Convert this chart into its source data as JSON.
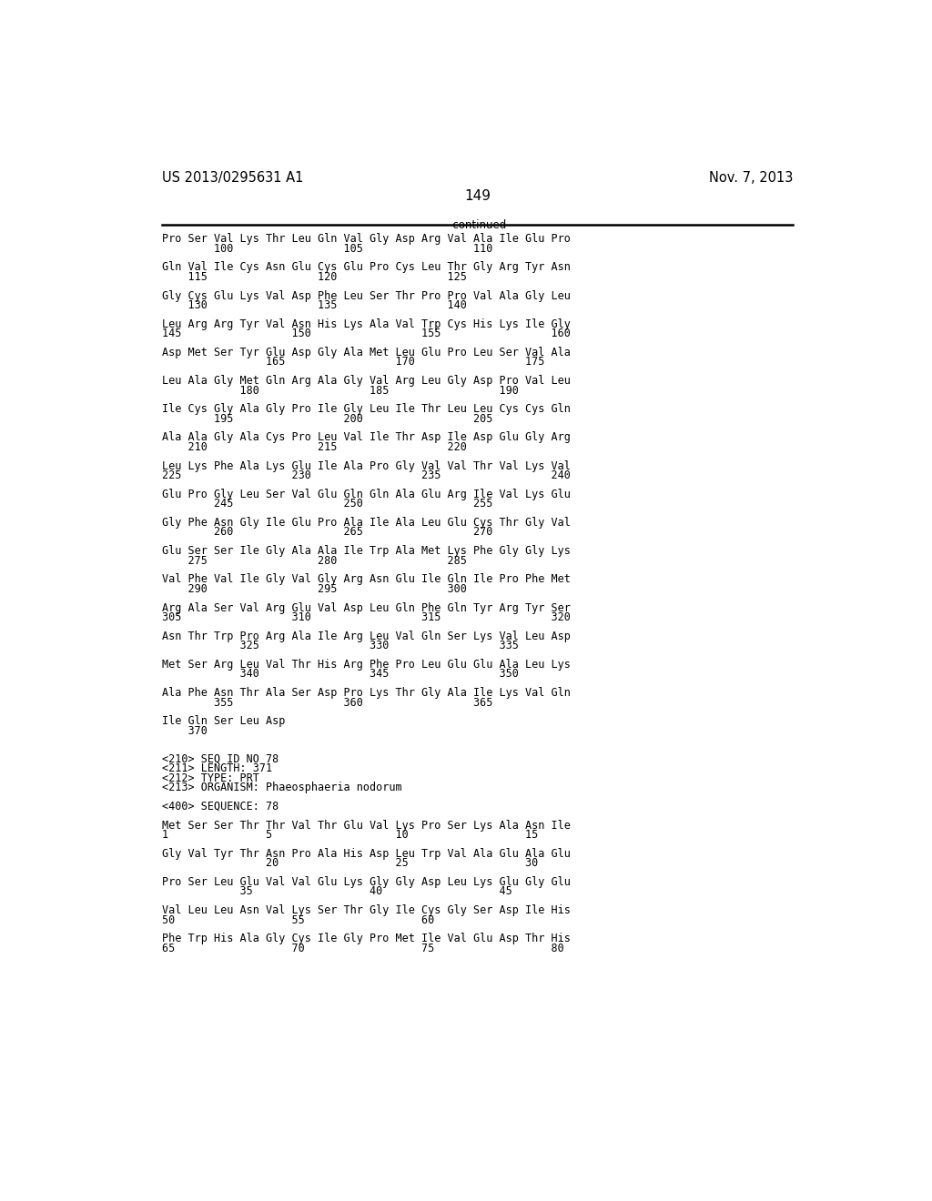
{
  "header_left": "US 2013/0295631 A1",
  "header_right": "Nov. 7, 2013",
  "page_number": "149",
  "continued_label": "-continued",
  "background_color": "#ffffff",
  "text_color": "#000000",
  "font_size": 8.5,
  "header_font_size": 10.5,
  "page_num_font_size": 11,
  "lines": [
    "Pro Ser Val Lys Thr Leu Gln Val Gly Asp Arg Val Ala Ile Glu Pro",
    "        100                 105                 110",
    "",
    "Gln Val Ile Cys Asn Glu Cys Glu Pro Cys Leu Thr Gly Arg Tyr Asn",
    "    115                 120                 125",
    "",
    "Gly Cys Glu Lys Val Asp Phe Leu Ser Thr Pro Pro Val Ala Gly Leu",
    "    130                 135                 140",
    "",
    "Leu Arg Arg Tyr Val Asn His Lys Ala Val Trp Cys His Lys Ile Gly",
    "145                 150                 155                 160",
    "",
    "Asp Met Ser Tyr Glu Asp Gly Ala Met Leu Glu Pro Leu Ser Val Ala",
    "                165                 170                 175",
    "",
    "Leu Ala Gly Met Gln Arg Ala Gly Val Arg Leu Gly Asp Pro Val Leu",
    "            180                 185                 190",
    "",
    "Ile Cys Gly Ala Gly Pro Ile Gly Leu Ile Thr Leu Leu Cys Cys Gln",
    "        195                 200                 205",
    "",
    "Ala Ala Gly Ala Cys Pro Leu Val Ile Thr Asp Ile Asp Glu Gly Arg",
    "    210                 215                 220",
    "",
    "Leu Lys Phe Ala Lys Glu Ile Ala Pro Gly Val Val Thr Val Lys Val",
    "225                 230                 235                 240",
    "",
    "Glu Pro Gly Leu Ser Val Glu Gln Gln Ala Glu Arg Ile Val Lys Glu",
    "        245                 250                 255",
    "",
    "Gly Phe Asn Gly Ile Glu Pro Ala Ile Ala Leu Glu Cys Thr Gly Val",
    "        260                 265                 270",
    "",
    "Glu Ser Ser Ile Gly Ala Ala Ile Trp Ala Met Lys Phe Gly Gly Lys",
    "    275                 280                 285",
    "",
    "Val Phe Val Ile Gly Val Gly Arg Asn Glu Ile Gln Ile Pro Phe Met",
    "    290                 295                 300",
    "",
    "Arg Ala Ser Val Arg Glu Val Asp Leu Gln Phe Gln Tyr Arg Tyr Ser",
    "305                 310                 315                 320",
    "",
    "Asn Thr Trp Pro Arg Ala Ile Arg Leu Val Gln Ser Lys Val Leu Asp",
    "            325                 330                 335",
    "",
    "Met Ser Arg Leu Val Thr His Arg Phe Pro Leu Glu Glu Ala Leu Lys",
    "            340                 345                 350",
    "",
    "Ala Phe Asn Thr Ala Ser Asp Pro Lys Thr Gly Ala Ile Lys Val Gln",
    "        355                 360                 365",
    "",
    "Ile Gln Ser Leu Asp",
    "    370",
    "",
    "",
    "<210> SEQ ID NO 78",
    "<211> LENGTH: 371",
    "<212> TYPE: PRT",
    "<213> ORGANISM: Phaeosphaeria nodorum",
    "",
    "<400> SEQUENCE: 78",
    "",
    "Met Ser Ser Thr Thr Val Thr Glu Val Lys Pro Ser Lys Ala Asn Ile",
    "1               5                   10                  15",
    "",
    "Gly Val Tyr Thr Asn Pro Ala His Asp Leu Trp Val Ala Glu Ala Glu",
    "                20                  25                  30",
    "",
    "Pro Ser Leu Glu Val Val Glu Lys Gly Gly Asp Leu Lys Glu Gly Glu",
    "            35                  40                  45",
    "",
    "Val Leu Leu Asn Val Lys Ser Thr Gly Ile Cys Gly Ser Asp Ile His",
    "50                  55                  60",
    "",
    "Phe Trp His Ala Gly Cys Ile Gly Pro Met Ile Val Glu Asp Thr His",
    "65                  70                  75                  80"
  ]
}
